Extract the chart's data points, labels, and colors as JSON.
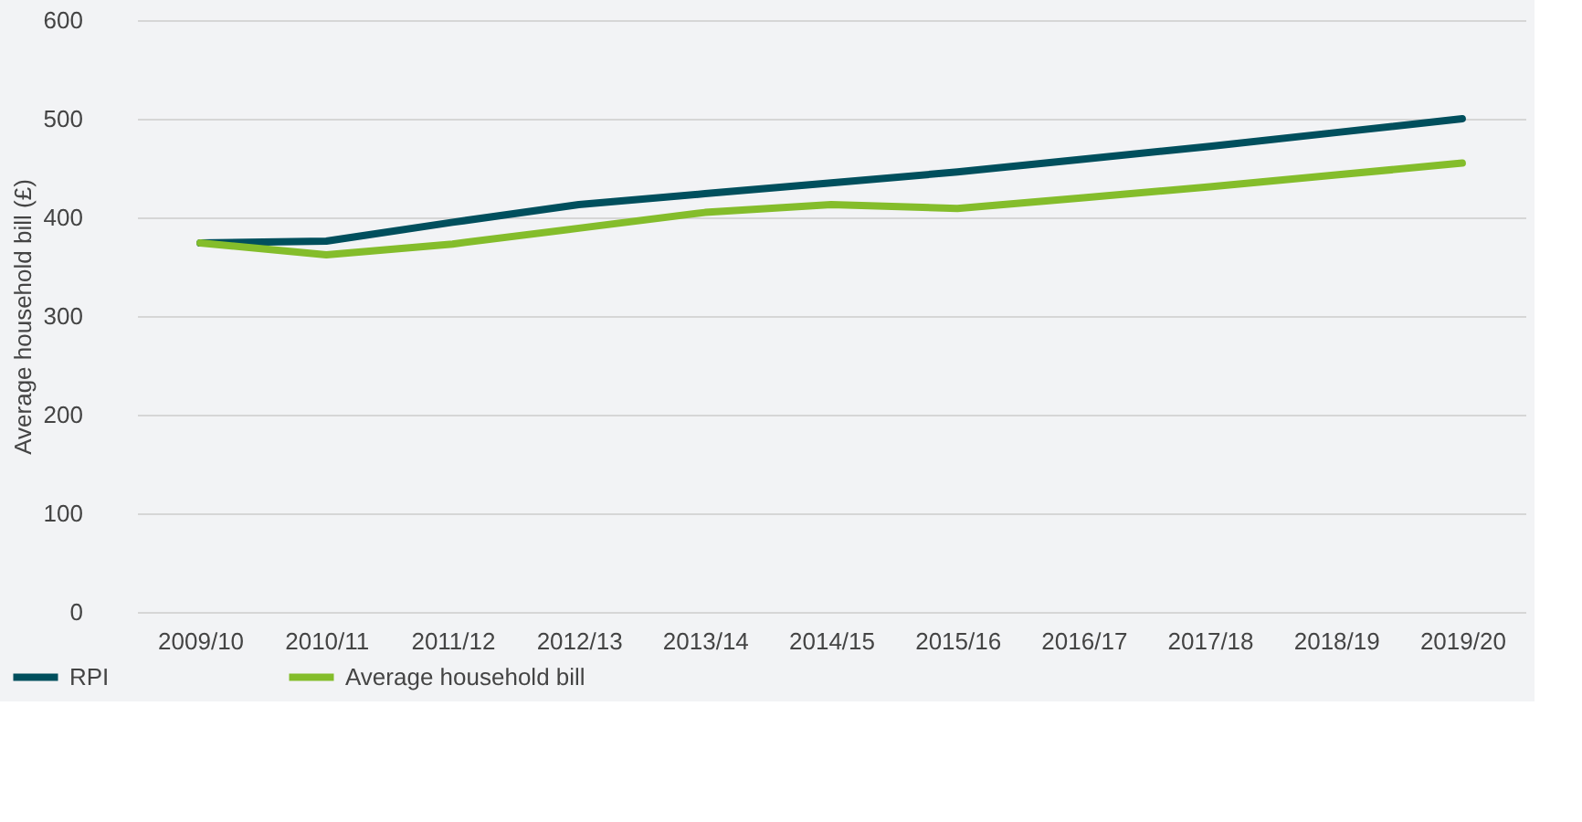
{
  "chart_data": {
    "type": "line",
    "ylabel": "Average household bill (£)",
    "categories": [
      "2009/10",
      "2010/11",
      "2011/12",
      "2012/13",
      "2013/14",
      "2014/15",
      "2015/16",
      "2016/17",
      "2017/18",
      "2018/19",
      "2019/20"
    ],
    "series": [
      {
        "name": "RPI",
        "color": "#004f5d",
        "values": [
          374,
          376,
          395,
          413,
          424,
          435,
          446,
          459,
          472,
          486,
          500
        ]
      },
      {
        "name": "Average household bill",
        "color": "#84bd2b",
        "values": [
          374,
          362,
          373,
          389,
          405,
          413,
          409,
          420,
          431,
          443,
          455
        ]
      }
    ],
    "ylim": [
      0,
      600
    ],
    "yticks": [
      0,
      100,
      200,
      300,
      400,
      500,
      600
    ],
    "grid": "y",
    "legend": "bottom left",
    "marker": "none",
    "line_style": "solid"
  }
}
